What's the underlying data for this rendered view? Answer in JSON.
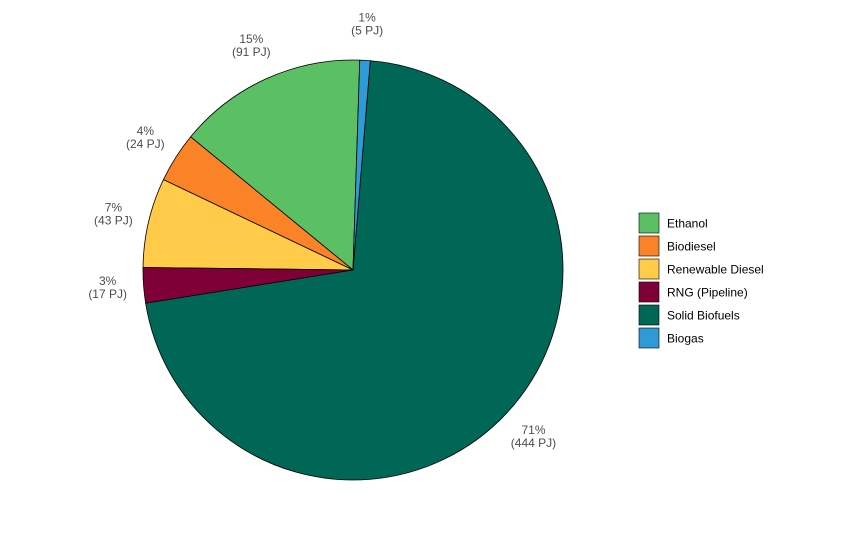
{
  "chart_data": {
    "type": "pie",
    "title": "",
    "unit": "PJ",
    "slices": [
      {
        "name": "Ethanol",
        "value": 91,
        "percent_label": "15%",
        "value_label": "(91 PJ)",
        "color": "#5BBF63"
      },
      {
        "name": "Biodiesel",
        "value": 24,
        "percent_label": "4%",
        "value_label": "(24 PJ)",
        "color": "#F98326"
      },
      {
        "name": "Renewable Diesel",
        "value": 43,
        "percent_label": "7%",
        "value_label": "(43 PJ)",
        "color": "#FFCB48"
      },
      {
        "name": "RNG (Pipeline)",
        "value": 17,
        "percent_label": "3%",
        "value_label": "(17 PJ)",
        "color": "#7F0037"
      },
      {
        "name": "Solid Biofuels",
        "value": 444,
        "percent_label": "71%",
        "value_label": "(444 PJ)",
        "color": "#006655"
      },
      {
        "name": "Biogas",
        "value": 5,
        "percent_label": "1%",
        "value_label": "(5 PJ)",
        "color": "#2F9BD6"
      }
    ],
    "direction": "counterclockwise",
    "legend_position": "right"
  }
}
